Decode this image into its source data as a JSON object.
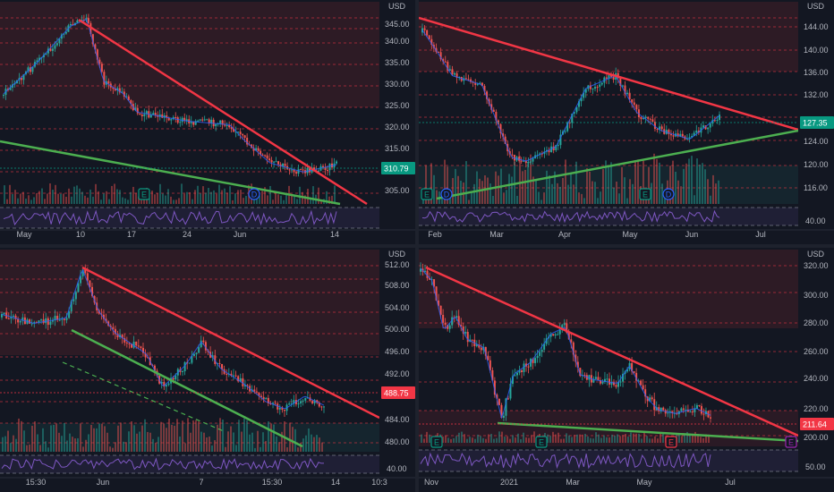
{
  "panels": [
    {
      "id": "tl",
      "currency": "USD",
      "last_price": "310.79",
      "last_price_color": "#089981",
      "y_ticks": [
        "345.00",
        "340.00",
        "335.00",
        "330.00",
        "325.00",
        "320.00",
        "315.00",
        "305.00"
      ],
      "x_ticks": [
        "May",
        "10",
        "17",
        "24",
        "Jun",
        "14"
      ],
      "osc_tick": "",
      "events": [
        "E",
        "D"
      ]
    },
    {
      "id": "tr",
      "currency": "USD",
      "last_price": "127.35",
      "last_price_color": "#089981",
      "y_ticks": [
        "144.00",
        "140.00",
        "136.00",
        "132.00",
        "124.00",
        "120.00",
        "116.00"
      ],
      "x_ticks": [
        "Feb",
        "Mar",
        "Apr",
        "May",
        "Jun",
        "Jul"
      ],
      "osc_tick": "40.00",
      "events": [
        "E",
        "D",
        "E",
        "D"
      ]
    },
    {
      "id": "bl",
      "currency": "USD",
      "last_price": "488.75",
      "last_price_color": "#f23645",
      "y_ticks": [
        "512.00",
        "508.00",
        "504.00",
        "500.00",
        "496.00",
        "492.00",
        "484.00",
        "480.00"
      ],
      "x_ticks": [
        "15:30",
        "Jun",
        "7",
        "15:30",
        "14",
        "10:3"
      ],
      "osc_tick": "40.00",
      "events": []
    },
    {
      "id": "br",
      "currency": "USD",
      "last_price": "211.64",
      "last_price_color": "#f23645",
      "y_ticks": [
        "320.00",
        "300.00",
        "280.00",
        "260.00",
        "240.00",
        "220.00",
        "200.00"
      ],
      "x_ticks": [
        "Nov",
        "2021",
        "Mar",
        "May",
        "Jul"
      ],
      "osc_tick": "50.00",
      "events": [
        "E",
        "E",
        "E",
        "E"
      ]
    }
  ],
  "colors": {
    "background": "#131722",
    "up": "#26a69a",
    "down": "#ef5350",
    "resistance_line": "#f23645",
    "support_line": "#4caf50",
    "level_line": "#f23645",
    "ma_line": "#2962ff",
    "rsi_line": "#7e57c2",
    "text": "#b2b5be"
  }
}
